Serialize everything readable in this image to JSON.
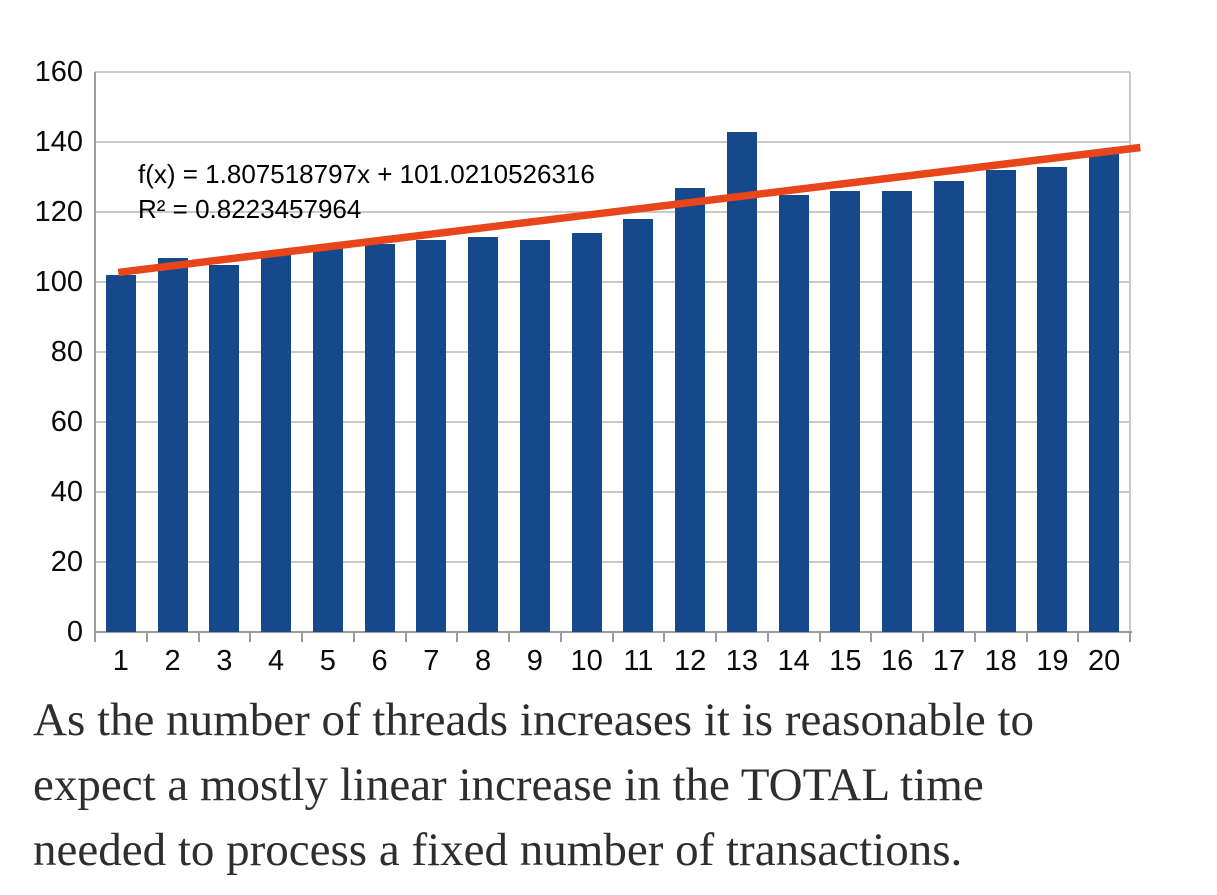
{
  "chart_data": {
    "type": "bar",
    "title": "",
    "xlabel": "",
    "ylabel": "",
    "categories": [
      "1",
      "2",
      "3",
      "4",
      "5",
      "6",
      "7",
      "8",
      "9",
      "10",
      "11",
      "12",
      "13",
      "14",
      "15",
      "16",
      "17",
      "18",
      "19",
      "20"
    ],
    "values": [
      102,
      107,
      105,
      108,
      110,
      111,
      112,
      113,
      112,
      114,
      118,
      127,
      143,
      125,
      126,
      126,
      129,
      132,
      133,
      137
    ],
    "ylim": [
      0,
      160
    ],
    "yticks": [
      0,
      20,
      40,
      60,
      80,
      100,
      120,
      140,
      160
    ],
    "grid": true,
    "legend_position": "none",
    "bar_color": "#15498b",
    "trendline": {
      "slope": 1.807518797,
      "intercept": 101.0210526316,
      "color": "#e9451a"
    },
    "annotation": {
      "line1": "f(x) = 1.807518797x + 101.0210526316",
      "line2": "R² = 0.8223457964"
    }
  },
  "caption": {
    "lines": [
      "As the number of threads increases it is reasonable to",
      "expect a mostly linear increase in the TOTAL time",
      "needed to process a fixed number of transactions."
    ]
  }
}
